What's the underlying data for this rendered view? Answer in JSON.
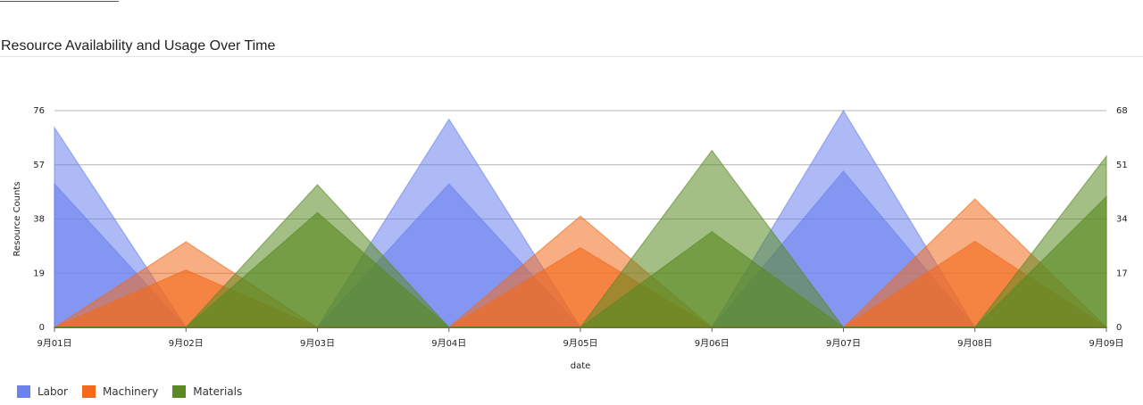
{
  "chart_data": {
    "type": "area",
    "title": "Resource Availability and Usage Over Time",
    "xlabel": "date",
    "ylabel": "Resource Counts",
    "categories": [
      "9月01日",
      "9月02日",
      "9月03日",
      "9月04日",
      "9月05日",
      "9月06日",
      "9月07日",
      "9月08日",
      "9月09日"
    ],
    "y_left": {
      "min": 0,
      "max": 76,
      "ticks": [
        "0",
        "19",
        "38",
        "57",
        "76"
      ]
    },
    "y_right": {
      "min": 0,
      "max": 68,
      "ticks": [
        "0",
        "17",
        "34",
        "51",
        "68"
      ]
    },
    "grid": true,
    "legend_position": "bottom-left",
    "series": [
      {
        "name": "Labor",
        "color": "#6b82ee",
        "axis": "left",
        "role": "availability",
        "values": [
          70,
          0,
          0,
          73,
          0,
          0,
          76,
          0,
          0
        ]
      },
      {
        "name": "Labor",
        "color": "#6b82ee",
        "axis": "right",
        "role": "usage",
        "values": [
          45,
          0,
          0,
          45,
          0,
          0,
          49,
          0,
          0
        ]
      },
      {
        "name": "Machinery",
        "color": "#f26b1d",
        "axis": "left",
        "role": "availability",
        "values": [
          0,
          30,
          0,
          0,
          39,
          0,
          0,
          45,
          0
        ]
      },
      {
        "name": "Machinery",
        "color": "#f26b1d",
        "axis": "right",
        "role": "usage",
        "values": [
          0,
          18,
          0,
          0,
          25,
          0,
          0,
          27,
          0
        ]
      },
      {
        "name": "Materials",
        "color": "#5a8a23",
        "axis": "left",
        "role": "availability",
        "values": [
          0,
          0,
          50,
          0,
          0,
          62,
          0,
          0,
          60
        ]
      },
      {
        "name": "Materials",
        "color": "#5a8a23",
        "axis": "right",
        "role": "usage",
        "values": [
          0,
          0,
          36,
          0,
          0,
          30,
          0,
          0,
          41
        ]
      }
    ],
    "legend": [
      {
        "label": "Labor",
        "color": "#6b82ee"
      },
      {
        "label": "Machinery",
        "color": "#f26b1d"
      },
      {
        "label": "Materials",
        "color": "#5a8a23"
      }
    ]
  }
}
